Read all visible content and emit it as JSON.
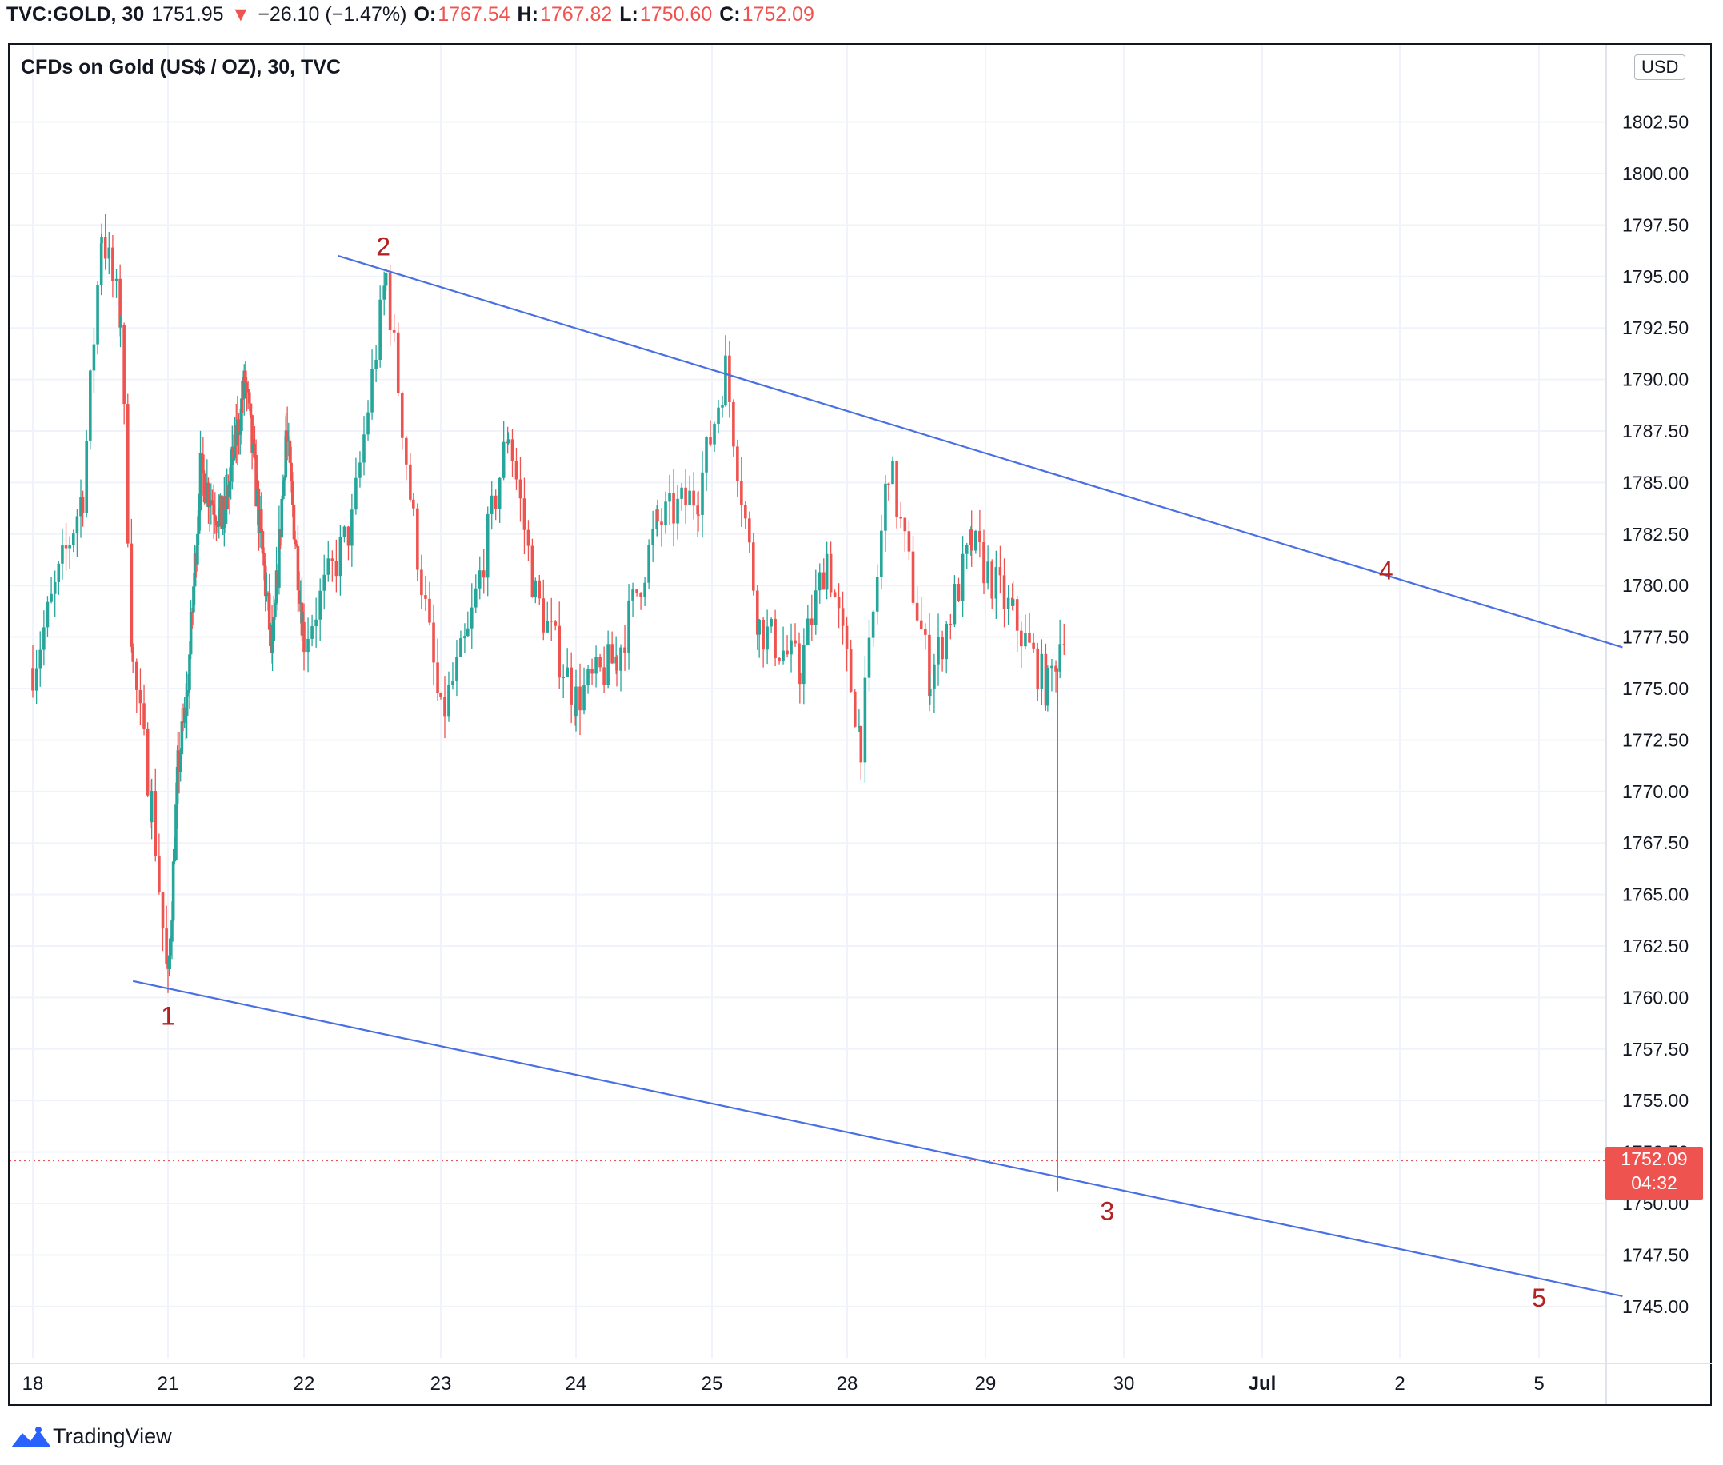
{
  "header": {
    "symbol": "TVC:GOLD, 30",
    "last": "1751.95",
    "arrow": "▼",
    "change": "−26.10 (−1.47%)",
    "o_label": "O:",
    "o_value": "1767.54",
    "h_label": "H:",
    "h_value": "1767.82",
    "l_label": "L:",
    "l_value": "1750.60",
    "c_label": "C:",
    "c_value": "1752.09"
  },
  "chart_title": "CFDs on Gold (US$ / OZ), 30, TVC",
  "currency_badge": "USD",
  "price_label": {
    "price": "1752.09",
    "countdown": "04:32"
  },
  "footer": {
    "brand": "TradingView"
  },
  "colors": {
    "up": "#26a69a",
    "down": "#ef5350",
    "trendline": "#4a6fe3",
    "wave_label": "#b22222",
    "grid": "#f0f3fa"
  },
  "chart_data": {
    "type": "candlestick",
    "title": "CFDs on Gold (US$ / OZ), 30, TVC",
    "xlabel": "",
    "ylabel": "",
    "ylim": [
      1743.0,
      1805.0
    ],
    "y_ticks": [
      "1802.50",
      "1800.00",
      "1797.50",
      "1795.00",
      "1792.50",
      "1790.00",
      "1787.50",
      "1785.00",
      "1782.50",
      "1780.00",
      "1777.50",
      "1775.00",
      "1772.50",
      "1770.00",
      "1767.50",
      "1765.00",
      "1762.50",
      "1760.00",
      "1757.50",
      "1755.00",
      "1752.50",
      "1750.00",
      "1747.50",
      "1745.00"
    ],
    "x_ticks": [
      "18",
      "21",
      "22",
      "23",
      "24",
      "25",
      "28",
      "29",
      "30",
      "Jul",
      "2",
      "5"
    ],
    "grid": true,
    "price_path_approx": [
      {
        "x": 17.9,
        "y": 1776.0
      },
      {
        "x": 18.3,
        "y": 1784.5
      },
      {
        "x": 18.45,
        "y": 1797.3
      },
      {
        "x": 18.6,
        "y": 1793.0
      },
      {
        "x": 18.7,
        "y": 1776.0
      },
      {
        "x": 18.85,
        "y": 1769.5
      },
      {
        "x": 18.98,
        "y": 1760.5
      },
      {
        "x": 19.2,
        "y": 1771.0
      },
      {
        "x": 19.4,
        "y": 1774.5
      },
      {
        "x": 19.7,
        "y": 1785.5
      },
      {
        "x": 20.2,
        "y": 1783.0
      },
      {
        "x": 20.7,
        "y": 1790.0
      },
      {
        "x": 21.3,
        "y": 1776.5
      },
      {
        "x": 21.6,
        "y": 1787.5
      },
      {
        "x": 22.0,
        "y": 1777.5
      },
      {
        "x": 22.35,
        "y": 1783.0
      },
      {
        "x": 22.6,
        "y": 1795.0
      },
      {
        "x": 22.8,
        "y": 1783.0
      },
      {
        "x": 23.0,
        "y": 1773.5
      },
      {
        "x": 23.2,
        "y": 1777.5
      },
      {
        "x": 23.5,
        "y": 1787.5
      },
      {
        "x": 23.7,
        "y": 1779.5
      },
      {
        "x": 24.0,
        "y": 1774.5
      },
      {
        "x": 24.3,
        "y": 1776.5
      },
      {
        "x": 24.6,
        "y": 1783.0
      },
      {
        "x": 24.9,
        "y": 1784.5
      },
      {
        "x": 25.1,
        "y": 1790.5
      },
      {
        "x": 25.35,
        "y": 1778.0
      },
      {
        "x": 25.65,
        "y": 1776.0
      },
      {
        "x": 25.85,
        "y": 1781.5
      },
      {
        "x": 26.1,
        "y": 1772.5
      },
      {
        "x": 26.3,
        "y": 1786.0
      },
      {
        "x": 26.6,
        "y": 1775.5
      },
      {
        "x": 26.9,
        "y": 1782.0
      },
      {
        "x": 27.2,
        "y": 1778.5
      },
      {
        "x": 27.45,
        "y": 1775.0
      },
      {
        "x": 27.6,
        "y": 1779.0
      },
      {
        "x": 27.75,
        "y": 1766.5
      },
      {
        "x": 27.85,
        "y": 1763.5
      },
      {
        "x": 27.88,
        "y": 1751.9
      }
    ],
    "series": [
      {
        "name": "Trendline upper",
        "points": [
          {
            "x": 22.25,
            "y": 1796.0
          },
          {
            "x": 31.6,
            "y": 1777.0
          }
        ]
      },
      {
        "name": "Trendline lower",
        "points": [
          {
            "x": 18.7,
            "y": 1760.8
          },
          {
            "x": 31.6,
            "y": 1745.5
          }
        ]
      }
    ],
    "annotations": [
      {
        "text": "1",
        "x": 18.98,
        "y": 1760.0
      },
      {
        "text": "2",
        "x": 22.58,
        "y": 1795.4
      },
      {
        "text": "3",
        "x": 27.88,
        "y": 1750.6
      },
      {
        "text": "4",
        "x": 29.9,
        "y": 1780.6
      },
      {
        "text": "5",
        "x": 31.0,
        "y": 1746.0
      }
    ],
    "last_price": 1752.09
  }
}
